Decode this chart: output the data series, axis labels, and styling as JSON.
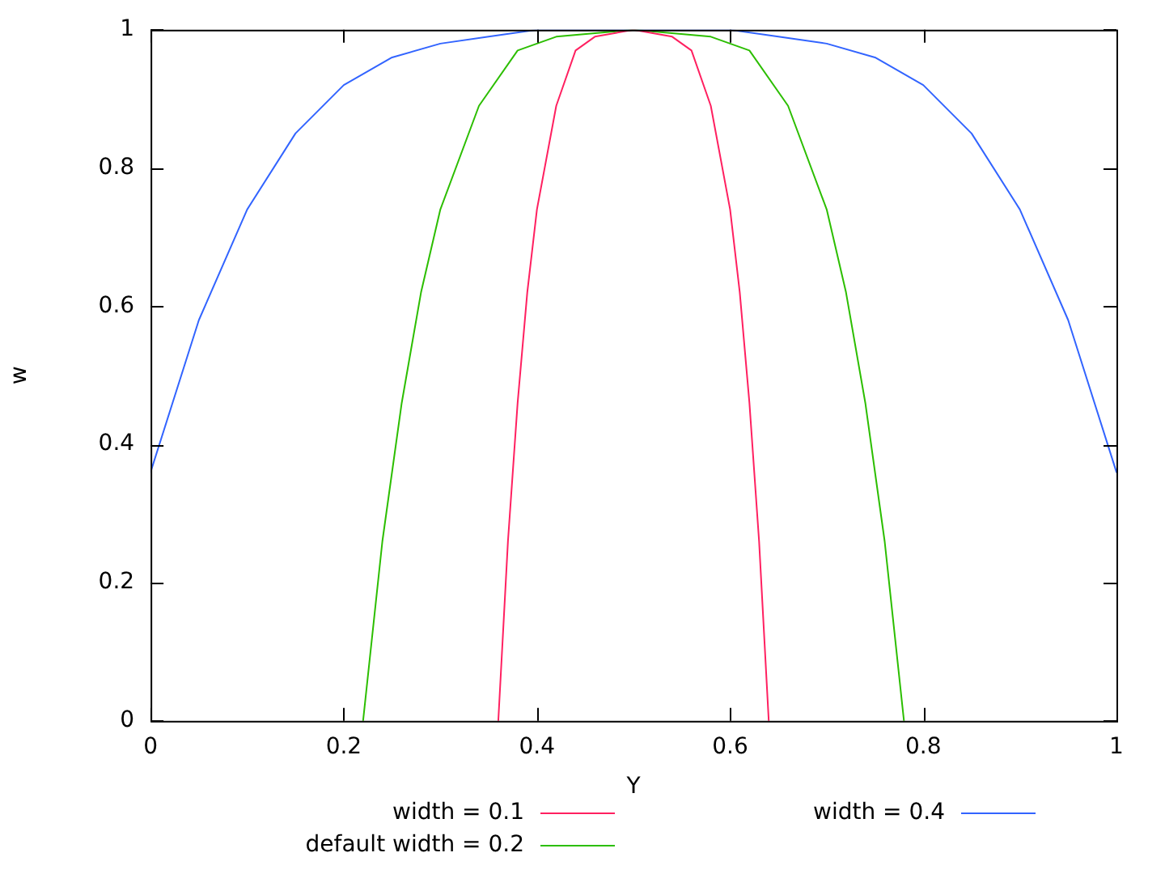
{
  "chart_data": {
    "type": "line",
    "xlabel": "Y",
    "ylabel": "w",
    "xlim": [
      0,
      1
    ],
    "xticks": [
      0,
      0.2,
      0.4,
      0.6,
      0.8,
      1
    ],
    "ylim": [
      0,
      1
    ],
    "yticks": [
      0,
      0.2,
      0.4,
      0.6,
      0.8,
      1
    ],
    "grid": false,
    "legend": "bottom",
    "marker": "none",
    "line_style": "solid",
    "series": [
      {
        "name": "width = 0.1",
        "color": "#ff2060",
        "x": [
          0.36,
          0.37,
          0.38,
          0.39,
          0.4,
          0.42,
          0.44,
          0.46,
          0.5,
          0.54,
          0.56,
          0.58,
          0.6,
          0.61,
          0.62,
          0.63,
          0.64
        ],
        "values": [
          0,
          0.26,
          0.46,
          0.62,
          0.74,
          0.89,
          0.97,
          0.99,
          1,
          0.99,
          0.97,
          0.89,
          0.74,
          0.62,
          0.46,
          0.26,
          0
        ]
      },
      {
        "name": "default width = 0.2",
        "color": "#2cbe00",
        "x": [
          0.22,
          0.24,
          0.26,
          0.28,
          0.3,
          0.34,
          0.38,
          0.42,
          0.5,
          0.58,
          0.62,
          0.66,
          0.7,
          0.72,
          0.74,
          0.76,
          0.78
        ],
        "values": [
          0,
          0.26,
          0.46,
          0.62,
          0.74,
          0.89,
          0.97,
          0.99,
          1,
          0.99,
          0.97,
          0.89,
          0.74,
          0.62,
          0.46,
          0.26,
          0
        ]
      },
      {
        "name": "width = 0.4",
        "color": "#3264ff",
        "x": [
          0,
          0.05,
          0.1,
          0.15,
          0.2,
          0.25,
          0.3,
          0.35,
          0.4,
          0.5,
          0.6,
          0.65,
          0.7,
          0.75,
          0.8,
          0.85,
          0.9,
          0.95,
          1
        ],
        "values": [
          0.36,
          0.58,
          0.74,
          0.85,
          0.92,
          0.96,
          0.98,
          0.99,
          1,
          1,
          1,
          0.99,
          0.98,
          0.96,
          0.92,
          0.85,
          0.74,
          0.58,
          0.36
        ]
      }
    ]
  }
}
